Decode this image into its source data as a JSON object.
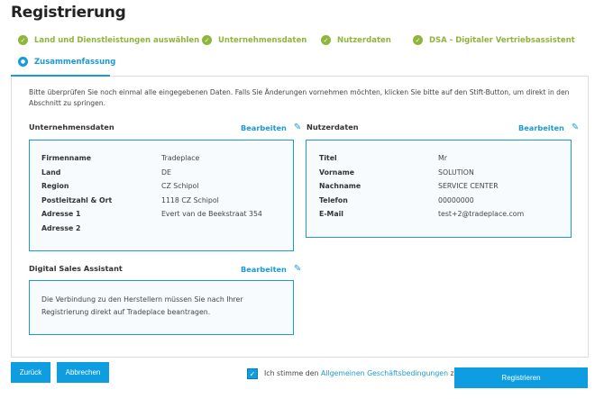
{
  "title": "Registrierung",
  "steps": [
    {
      "label": "Land und Dienstleistungen auswählen",
      "status": "done",
      "icon": "check-icon"
    },
    {
      "label": "Unternehmensdaten",
      "status": "done",
      "icon": "check-icon"
    },
    {
      "label": "Nutzerdaten",
      "status": "done",
      "icon": "check-icon"
    },
    {
      "label": "DSA - Digitaler Vertriebsassistent",
      "status": "done",
      "icon": "check-icon"
    },
    {
      "label": "Zusammenfassung",
      "status": "active",
      "icon": "step-number-icon"
    }
  ],
  "intro": "Bitte überprüfen Sie noch einmal alle eingegebenen Daten. Falls Sie Änderungen vornehmen möchten, klicken Sie bitte auf den Stift-Button, um direkt in den Abschnitt zu springen.",
  "edit_label": "Bearbeiten",
  "company": {
    "heading": "Unternehmensdaten",
    "rows": [
      {
        "label": "Firmenname",
        "value": "Tradeplace"
      },
      {
        "label": "Land",
        "value": "DE"
      },
      {
        "label": "Region",
        "value": "CZ Schipol"
      },
      {
        "label": "Postleitzahl & Ort",
        "value": "1118 CZ Schipol"
      },
      {
        "label": "Adresse 1",
        "value": "Evert van de Beekstraat 354"
      },
      {
        "label": "Adresse 2",
        "value": ""
      }
    ]
  },
  "user": {
    "heading": "Nutzerdaten",
    "rows": [
      {
        "label": "Titel",
        "value": "Mr"
      },
      {
        "label": "Vorname",
        "value": "SOLUTION"
      },
      {
        "label": "Nachname",
        "value": "SERVICE CENTER"
      },
      {
        "label": "Telefon",
        "value": "00000000"
      },
      {
        "label": "E-Mail",
        "value": "test+2@tradeplace.com"
      }
    ]
  },
  "dsa": {
    "heading": "Digital Sales Assistant",
    "text": "Die Verbindung zu den Herstellern müssen Sie nach Ihrer Registrierung direkt auf Tradeplace beantragen."
  },
  "footer": {
    "back": "Zurück",
    "cancel": "Abbrechen",
    "agree_pre": "Ich stimme den ",
    "agree_link": "Allgemeinen Geschäftsbedingungen",
    "agree_post": " zu",
    "agree_checked": true,
    "register": "Registrieren"
  },
  "colors": {
    "accent": "#1a9ad6",
    "done": "#8db63c",
    "button": "#0d9de0"
  }
}
